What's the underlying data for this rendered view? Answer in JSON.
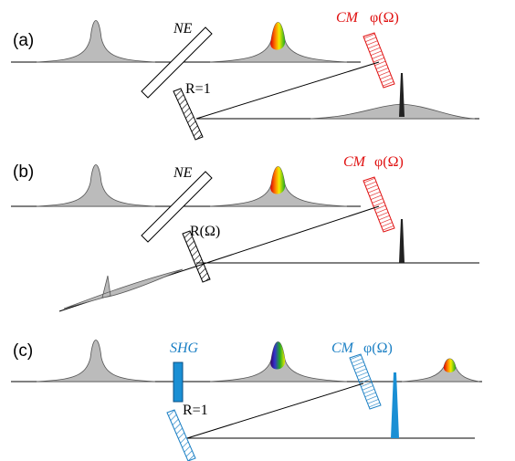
{
  "panels": [
    {
      "label": "(a)",
      "element": "NE",
      "mirror": "CM",
      "phase": "φ(Ω)",
      "reflector": "R=1"
    },
    {
      "label": "(b)",
      "element": "NE",
      "mirror": "CM",
      "phase": "φ(Ω)",
      "reflector": "R(Ω)"
    },
    {
      "label": "(c)",
      "element": "SHG",
      "mirror": "CM",
      "phase": "φ(Ω)",
      "reflector": "R=1"
    }
  ]
}
